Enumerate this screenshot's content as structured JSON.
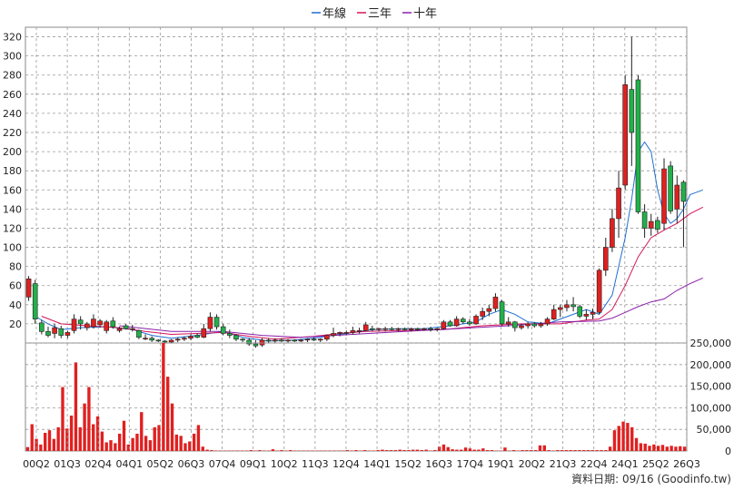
{
  "legend": {
    "items": [
      {
        "label": "年線",
        "color": "#1f6fd1"
      },
      {
        "label": "三年",
        "color": "#d4145a"
      },
      {
        "label": "十年",
        "color": "#8a1fa8"
      }
    ]
  },
  "footer": {
    "source_text": "資料日期: 09/16  (Goodinfo.tw)"
  },
  "colors": {
    "up": "#e02020",
    "down": "#22b04a",
    "volume": "#e02020",
    "grid": "#999999"
  },
  "chart_data": [
    {
      "type": "candlestick",
      "yticks": [
        20,
        40,
        60,
        80,
        100,
        120,
        140,
        160,
        180,
        200,
        220,
        240,
        260,
        280,
        300,
        320
      ],
      "ylim": [
        0,
        330
      ],
      "grid": true,
      "xticks": [
        "00Q2",
        "01Q3",
        "02Q4",
        "04Q1",
        "05Q2",
        "06Q3",
        "07Q4",
        "09Q1",
        "10Q2",
        "11Q3",
        "12Q4",
        "14Q1",
        "15Q2",
        "16Q3",
        "17Q4",
        "19Q1",
        "20Q2",
        "21Q3",
        "22Q4",
        "24Q1",
        "25Q2",
        "26Q3"
      ],
      "candles": [
        {
          "o": 48,
          "h": 70,
          "l": 44,
          "c": 67
        },
        {
          "o": 62,
          "h": 66,
          "l": 20,
          "c": 25
        },
        {
          "o": 21,
          "h": 24,
          "l": 9,
          "c": 12
        },
        {
          "o": 12,
          "h": 17,
          "l": 6,
          "c": 8
        },
        {
          "o": 10,
          "h": 20,
          "l": 5,
          "c": 16
        },
        {
          "o": 15,
          "h": 18,
          "l": 5,
          "c": 8
        },
        {
          "o": 8,
          "h": 13,
          "l": 5,
          "c": 11
        },
        {
          "o": 13,
          "h": 30,
          "l": 10,
          "c": 25
        },
        {
          "o": 24,
          "h": 28,
          "l": 14,
          "c": 20
        },
        {
          "o": 16,
          "h": 22,
          "l": 13,
          "c": 20
        },
        {
          "o": 17,
          "h": 30,
          "l": 15,
          "c": 25
        },
        {
          "o": 19,
          "h": 25,
          "l": 16,
          "c": 23
        },
        {
          "o": 13,
          "h": 24,
          "l": 10,
          "c": 22
        },
        {
          "o": 23,
          "h": 27,
          "l": 15,
          "c": 17
        },
        {
          "o": 13,
          "h": 17,
          "l": 11,
          "c": 15
        },
        {
          "o": 18,
          "h": 20,
          "l": 14,
          "c": 15
        },
        {
          "o": 14,
          "h": 19,
          "l": 12,
          "c": 15
        },
        {
          "o": 13,
          "h": 14,
          "l": 4,
          "c": 6
        },
        {
          "o": 5,
          "h": 9,
          "l": 3,
          "c": 5
        },
        {
          "o": 5,
          "h": 7,
          "l": 1,
          "c": 3
        },
        {
          "o": 3,
          "h": 4,
          "l": 1,
          "c": 2
        },
        {
          "o": 2,
          "h": 3,
          "l": 0,
          "c": 1
        },
        {
          "o": 1,
          "h": 4,
          "l": 0,
          "c": 3
        },
        {
          "o": 3,
          "h": 6,
          "l": 1,
          "c": 4
        },
        {
          "o": 4,
          "h": 7,
          "l": 2,
          "c": 5
        },
        {
          "o": 5,
          "h": 9,
          "l": 3,
          "c": 7
        },
        {
          "o": 8,
          "h": 10,
          "l": 5,
          "c": 6
        },
        {
          "o": 6,
          "h": 20,
          "l": 5,
          "c": 15
        },
        {
          "o": 15,
          "h": 32,
          "l": 12,
          "c": 27
        },
        {
          "o": 27,
          "h": 30,
          "l": 14,
          "c": 17
        },
        {
          "o": 17,
          "h": 20,
          "l": 8,
          "c": 10
        },
        {
          "o": 10,
          "h": 14,
          "l": 5,
          "c": 8
        },
        {
          "o": 8,
          "h": 9,
          "l": 2,
          "c": 4
        },
        {
          "o": 4,
          "h": 5,
          "l": 1,
          "c": 3
        },
        {
          "o": 3,
          "h": 5,
          "l": -3,
          "c": -1
        },
        {
          "o": -1,
          "h": 3,
          "l": -5,
          "c": -3
        },
        {
          "o": -2,
          "h": 5,
          "l": -4,
          "c": 3
        },
        {
          "o": 3,
          "h": 5,
          "l": 0,
          "c": 2
        },
        {
          "o": 2,
          "h": 5,
          "l": 0,
          "c": 3
        },
        {
          "o": 3,
          "h": 5,
          "l": 1,
          "c": 2
        },
        {
          "o": 2,
          "h": 4,
          "l": 0,
          "c": 3
        },
        {
          "o": 3,
          "h": 4,
          "l": 1,
          "c": 2
        },
        {
          "o": 2,
          "h": 4,
          "l": 1,
          "c": 3
        },
        {
          "o": 3,
          "h": 5,
          "l": 1,
          "c": 4
        },
        {
          "o": 4,
          "h": 6,
          "l": 2,
          "c": 3
        },
        {
          "o": 3,
          "h": 5,
          "l": 1,
          "c": 4
        },
        {
          "o": 4,
          "h": 9,
          "l": 2,
          "c": 8
        },
        {
          "o": 8,
          "h": 16,
          "l": 6,
          "c": 10
        },
        {
          "o": 10,
          "h": 12,
          "l": 7,
          "c": 11
        },
        {
          "o": 11,
          "h": 13,
          "l": 8,
          "c": 11
        },
        {
          "o": 11,
          "h": 17,
          "l": 9,
          "c": 13
        },
        {
          "o": 13,
          "h": 16,
          "l": 10,
          "c": 13
        },
        {
          "o": 13,
          "h": 22,
          "l": 12,
          "c": 19
        },
        {
          "o": 15,
          "h": 18,
          "l": 12,
          "c": 14
        },
        {
          "o": 14,
          "h": 16,
          "l": 12,
          "c": 15
        },
        {
          "o": 15,
          "h": 17,
          "l": 12,
          "c": 15
        },
        {
          "o": 15,
          "h": 17,
          "l": 13,
          "c": 14
        },
        {
          "o": 14,
          "h": 16,
          "l": 12,
          "c": 15
        },
        {
          "o": 15,
          "h": 16,
          "l": 13,
          "c": 14
        },
        {
          "o": 14,
          "h": 16,
          "l": 12,
          "c": 15
        },
        {
          "o": 15,
          "h": 16,
          "l": 13,
          "c": 14
        },
        {
          "o": 14,
          "h": 16,
          "l": 13,
          "c": 15
        },
        {
          "o": 15,
          "h": 17,
          "l": 12,
          "c": 14
        },
        {
          "o": 14,
          "h": 16,
          "l": 12,
          "c": 15
        },
        {
          "o": 15,
          "h": 24,
          "l": 14,
          "c": 22
        },
        {
          "o": 22,
          "h": 24,
          "l": 17,
          "c": 18
        },
        {
          "o": 18,
          "h": 28,
          "l": 17,
          "c": 25
        },
        {
          "o": 25,
          "h": 27,
          "l": 20,
          "c": 22
        },
        {
          "o": 22,
          "h": 25,
          "l": 18,
          "c": 20
        },
        {
          "o": 20,
          "h": 30,
          "l": 19,
          "c": 28
        },
        {
          "o": 28,
          "h": 37,
          "l": 24,
          "c": 33
        },
        {
          "o": 33,
          "h": 40,
          "l": 28,
          "c": 36
        },
        {
          "o": 36,
          "h": 52,
          "l": 33,
          "c": 48
        },
        {
          "o": 43,
          "h": 45,
          "l": 18,
          "c": 20
        },
        {
          "o": 20,
          "h": 27,
          "l": 17,
          "c": 22
        },
        {
          "o": 22,
          "h": 23,
          "l": 12,
          "c": 16
        },
        {
          "o": 16,
          "h": 20,
          "l": 14,
          "c": 18
        },
        {
          "o": 18,
          "h": 22,
          "l": 15,
          "c": 20
        },
        {
          "o": 20,
          "h": 22,
          "l": 16,
          "c": 18
        },
        {
          "o": 18,
          "h": 22,
          "l": 16,
          "c": 20
        },
        {
          "o": 20,
          "h": 27,
          "l": 18,
          "c": 25
        },
        {
          "o": 25,
          "h": 40,
          "l": 24,
          "c": 35
        },
        {
          "o": 35,
          "h": 40,
          "l": 27,
          "c": 37
        },
        {
          "o": 37,
          "h": 45,
          "l": 33,
          "c": 40
        },
        {
          "o": 40,
          "h": 48,
          "l": 33,
          "c": 38
        },
        {
          "o": 38,
          "h": 40,
          "l": 26,
          "c": 28
        },
        {
          "o": 28,
          "h": 35,
          "l": 24,
          "c": 30
        },
        {
          "o": 30,
          "h": 36,
          "l": 25,
          "c": 32
        },
        {
          "o": 32,
          "h": 78,
          "l": 30,
          "c": 76
        },
        {
          "o": 76,
          "h": 110,
          "l": 70,
          "c": 100
        },
        {
          "o": 100,
          "h": 140,
          "l": 95,
          "c": 130
        },
        {
          "o": 130,
          "h": 180,
          "l": 110,
          "c": 162
        },
        {
          "o": 165,
          "h": 280,
          "l": 160,
          "c": 270
        },
        {
          "o": 265,
          "h": 320,
          "l": 185,
          "c": 220
        },
        {
          "o": 275,
          "h": 280,
          "l": 135,
          "c": 137
        },
        {
          "o": 137,
          "h": 145,
          "l": 110,
          "c": 120
        },
        {
          "o": 120,
          "h": 135,
          "l": 112,
          "c": 127
        },
        {
          "o": 128,
          "h": 132,
          "l": 115,
          "c": 119
        },
        {
          "o": 125,
          "h": 193,
          "l": 118,
          "c": 182
        },
        {
          "o": 185,
          "h": 190,
          "l": 135,
          "c": 138
        },
        {
          "o": 140,
          "h": 175,
          "l": 125,
          "c": 165
        },
        {
          "o": 168,
          "h": 170,
          "l": 100,
          "c": 148
        }
      ],
      "series": [
        {
          "name": "年線",
          "points": [
            [
              1,
              28
            ],
            [
              3,
              20
            ],
            [
              5,
              14
            ],
            [
              8,
              16
            ],
            [
              12,
              17
            ],
            [
              16,
              14
            ],
            [
              19,
              8
            ],
            [
              22,
              5
            ],
            [
              26,
              8
            ],
            [
              30,
              12
            ],
            [
              33,
              6
            ],
            [
              37,
              2
            ],
            [
              41,
              3
            ],
            [
              45,
              6
            ],
            [
              49,
              10
            ],
            [
              53,
              14
            ],
            [
              57,
              15
            ],
            [
              61,
              15
            ],
            [
              65,
              18
            ],
            [
              69,
              22
            ],
            [
              71,
              30
            ],
            [
              73,
              35
            ],
            [
              75,
              30
            ],
            [
              77,
              22
            ],
            [
              80,
              20
            ],
            [
              82,
              25
            ],
            [
              84,
              30
            ],
            [
              86,
              35
            ],
            [
              88,
              30
            ],
            [
              90,
              50
            ],
            [
              92,
              110
            ],
            [
              93,
              150
            ],
            [
              94,
              200
            ],
            [
              95,
              210
            ],
            [
              96,
              200
            ],
            [
              97,
              160
            ],
            [
              98,
              135
            ],
            [
              99,
              125
            ],
            [
              100,
              130
            ],
            [
              101,
              140
            ],
            [
              102,
              155
            ],
            [
              104,
              160
            ]
          ]
        },
        {
          "name": "三年",
          "points": [
            [
              2,
              28
            ],
            [
              5,
              20
            ],
            [
              9,
              18
            ],
            [
              14,
              16
            ],
            [
              18,
              12
            ],
            [
              22,
              9
            ],
            [
              26,
              10
            ],
            [
              30,
              11
            ],
            [
              34,
              7
            ],
            [
              38,
              4
            ],
            [
              44,
              7
            ],
            [
              48,
              10
            ],
            [
              52,
              12
            ],
            [
              58,
              13
            ],
            [
              64,
              14
            ],
            [
              70,
              18
            ],
            [
              76,
              20
            ],
            [
              82,
              20
            ],
            [
              86,
              24
            ],
            [
              88,
              25
            ],
            [
              90,
              35
            ],
            [
              92,
              60
            ],
            [
              94,
              90
            ],
            [
              96,
              110
            ],
            [
              98,
              118
            ],
            [
              100,
              125
            ],
            [
              102,
              135
            ],
            [
              104,
              142
            ]
          ]
        },
        {
          "name": "十年",
          "points": [
            [
              14,
              18
            ],
            [
              22,
              12
            ],
            [
              30,
              12
            ],
            [
              36,
              8
            ],
            [
              42,
              6
            ],
            [
              50,
              9
            ],
            [
              58,
              12
            ],
            [
              66,
              15
            ],
            [
              74,
              18
            ],
            [
              82,
              22
            ],
            [
              88,
              23
            ],
            [
              90,
              26
            ],
            [
              92,
              32
            ],
            [
              94,
              38
            ],
            [
              96,
              43
            ],
            [
              98,
              46
            ],
            [
              100,
              55
            ],
            [
              102,
              62
            ],
            [
              104,
              68
            ]
          ]
        }
      ]
    },
    {
      "type": "bar",
      "yticks": [
        "0",
        "50,000",
        "100,000",
        "150,000",
        "200,000",
        "250,000"
      ],
      "ylim": [
        0,
        250000
      ],
      "values": [
        9000,
        62000,
        28000,
        15000,
        42000,
        48000,
        28000,
        55000,
        148000,
        52000,
        82000,
        205000,
        55000,
        110000,
        148000,
        62000,
        80000,
        45000,
        20000,
        25000,
        18000,
        40000,
        70000,
        15000,
        30000,
        40000,
        90000,
        35000,
        25000,
        55000,
        60000,
        250000,
        172000,
        110000,
        38000,
        35000,
        18000,
        22000,
        40000,
        60000,
        10000,
        3000,
        2000,
        1000,
        1000,
        1000,
        1000,
        1000,
        1000,
        1000,
        1000,
        2000,
        1000,
        2000,
        1000,
        1000,
        4000,
        1000,
        2000,
        1000,
        2000,
        1000,
        1000,
        1000,
        1000,
        1000,
        1000,
        1000,
        1000,
        1000,
        1000,
        1000,
        1000,
        2000,
        1000,
        2000,
        1000,
        2000,
        1000,
        1000,
        2000,
        3000,
        2000,
        2000,
        2000,
        3000,
        2000,
        2000,
        3000,
        3000,
        2000,
        3000,
        1000,
        2000,
        10000,
        15000,
        9000,
        4000,
        3000,
        3000,
        8000,
        6000,
        3000,
        3000,
        6000,
        2000,
        2000,
        1000,
        1000,
        8000,
        1000,
        2000,
        1000,
        2000,
        2000,
        2000,
        2000,
        13000,
        13000,
        2000,
        1000,
        2000,
        2000,
        2000,
        2000,
        2000,
        2000,
        2000,
        2000,
        2000,
        2000,
        2000,
        2000,
        10000,
        48000,
        58000,
        68000,
        65000,
        55000,
        30000,
        18000,
        17000,
        12000,
        15000,
        12000,
        14000,
        10000,
        12000,
        10000,
        11000,
        10000
      ]
    }
  ]
}
